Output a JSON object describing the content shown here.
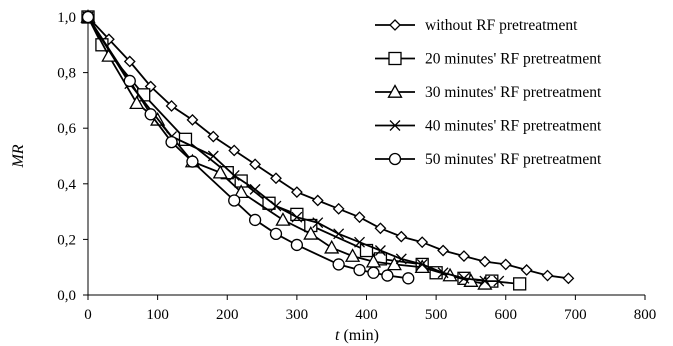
{
  "chart_data": {
    "type": "line",
    "xlabel_italic": "t",
    "xlabel_rest": " (min)",
    "ylabel": "MR",
    "xlim": [
      0,
      800
    ],
    "ylim": [
      0,
      1.0
    ],
    "xticks": [
      "0",
      "100",
      "200",
      "300",
      "400",
      "500",
      "600",
      "700",
      "800"
    ],
    "yticks": [
      "0,0",
      "0,2",
      "0,4",
      "0,6",
      "0,8",
      "1,0"
    ],
    "grid": false,
    "legend_position": "top-right",
    "series": [
      {
        "name": "without RF pretreatment",
        "marker": "diamond",
        "x": [
          0,
          30,
          60,
          90,
          120,
          150,
          180,
          210,
          240,
          270,
          300,
          330,
          360,
          390,
          420,
          450,
          480,
          510,
          540,
          570,
          600,
          630,
          660,
          690
        ],
        "y": [
          1.0,
          0.92,
          0.84,
          0.75,
          0.68,
          0.63,
          0.57,
          0.52,
          0.47,
          0.42,
          0.37,
          0.34,
          0.31,
          0.28,
          0.24,
          0.21,
          0.19,
          0.16,
          0.14,
          0.12,
          0.11,
          0.09,
          0.07,
          0.06
        ]
      },
      {
        "name": "20 minutes' RF pretreatment",
        "marker": "square",
        "x": [
          0,
          20,
          80,
          140,
          200,
          220,
          260,
          300,
          320,
          400,
          420,
          480,
          500,
          540,
          580,
          620
        ],
        "y": [
          1.0,
          0.9,
          0.72,
          0.56,
          0.44,
          0.41,
          0.33,
          0.29,
          0.25,
          0.16,
          0.13,
          0.11,
          0.08,
          0.06,
          0.05,
          0.04
        ]
      },
      {
        "name": "30 minutes' RF pretreatment",
        "marker": "triangle",
        "x": [
          0,
          30,
          70,
          100,
          150,
          190,
          220,
          280,
          320,
          350,
          380,
          410,
          440,
          480,
          520,
          550,
          570
        ],
        "y": [
          1.0,
          0.86,
          0.69,
          0.63,
          0.48,
          0.44,
          0.37,
          0.27,
          0.22,
          0.17,
          0.14,
          0.12,
          0.11,
          0.1,
          0.07,
          0.05,
          0.04
        ]
      },
      {
        "name": "40 minutes' RF pretreatment",
        "marker": "x",
        "x": [
          0,
          60,
          120,
          180,
          210,
          240,
          270,
          300,
          330,
          360,
          390,
          420,
          450,
          480,
          510,
          540,
          570,
          590
        ],
        "y": [
          1.0,
          0.76,
          0.57,
          0.5,
          0.43,
          0.38,
          0.32,
          0.28,
          0.26,
          0.22,
          0.19,
          0.16,
          0.13,
          0.11,
          0.08,
          0.06,
          0.05,
          0.05
        ]
      },
      {
        "name": "50 minutes' RF pretreatment",
        "marker": "circle",
        "x": [
          0,
          60,
          90,
          120,
          150,
          210,
          240,
          270,
          300,
          360,
          390,
          410,
          430,
          460
        ],
        "y": [
          1.0,
          0.77,
          0.65,
          0.55,
          0.48,
          0.34,
          0.27,
          0.22,
          0.18,
          0.11,
          0.09,
          0.08,
          0.07,
          0.06
        ]
      }
    ]
  }
}
